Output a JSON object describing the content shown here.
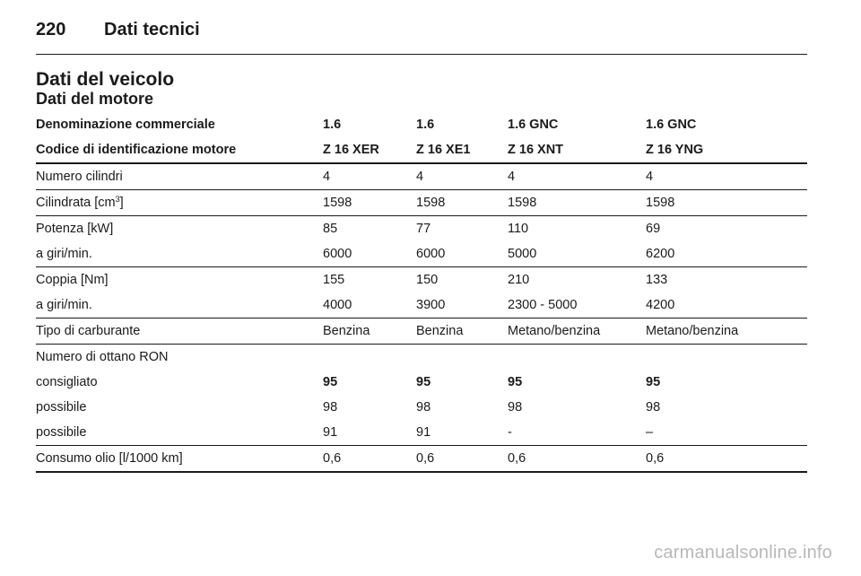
{
  "page": {
    "number": "220",
    "section": "Dati tecnici",
    "title": "Dati del veicolo",
    "subtitle": "Dati del motore"
  },
  "table": {
    "header1": [
      "Denominazione commerciale",
      "1.6",
      "1.6",
      "1.6 GNC",
      "1.6 GNC"
    ],
    "header2": [
      "Codice di identificazione motore",
      "Z 16 XER",
      "Z 16 XE1",
      "Z 16 XNT",
      "Z 16 YNG"
    ],
    "cylinders": [
      "Numero cilindri",
      "4",
      "4",
      "4",
      "4"
    ],
    "displacement": {
      "label_pre": "Cilindrata [cm",
      "label_sup": "3",
      "label_post": "]",
      "values": [
        "1598",
        "1598",
        "1598",
        "1598"
      ]
    },
    "power": [
      "Potenza [kW]",
      "85",
      "77",
      "110",
      "69"
    ],
    "power_rpm": [
      "a giri/min.",
      "6000",
      "6000",
      "5000",
      "6200"
    ],
    "torque": [
      "Coppia [Nm]",
      "155",
      "150",
      "210",
      "133"
    ],
    "torque_rpm": [
      "a giri/min.",
      "4000",
      "3900",
      "2300 - 5000",
      "4200"
    ],
    "fuel": [
      "Tipo di carburante",
      "Benzina",
      "Benzina",
      "Metano/benzina",
      "Metano/benzina"
    ],
    "octane_title": "Numero di ottano RON",
    "octane_recommended": [
      "consigliato",
      "95",
      "95",
      "95",
      "95"
    ],
    "octane_possible1": [
      "possibile",
      "98",
      "98",
      "98",
      "98"
    ],
    "octane_possible2": [
      "possibile",
      "91",
      "91",
      "-",
      "–"
    ],
    "oil": [
      "Consumo olio [l/1000 km]",
      "0,6",
      "0,6",
      "0,6",
      "0,6"
    ]
  },
  "watermark": "carmanualsonline.info"
}
